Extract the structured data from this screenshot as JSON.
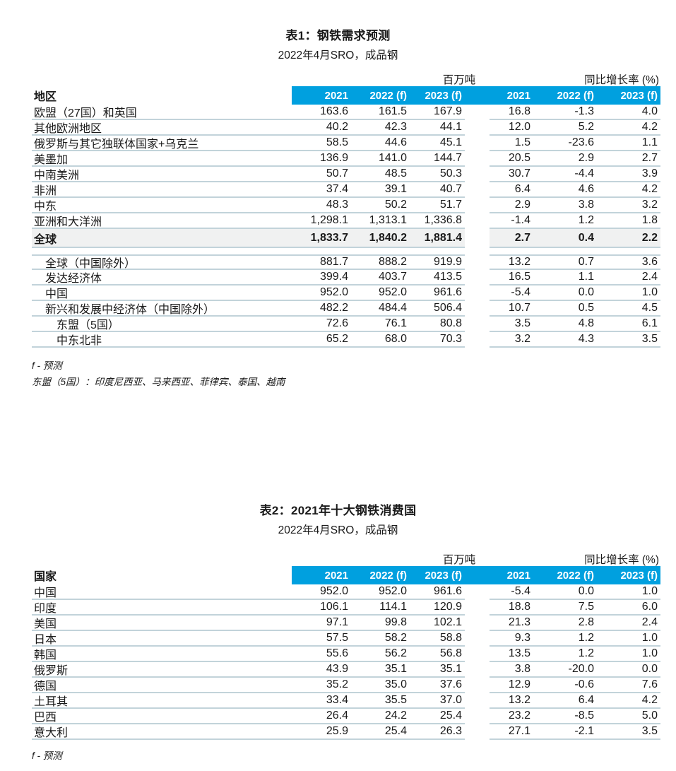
{
  "colors": {
    "accent": "#00A0DF",
    "line": "#C2D3DA",
    "row_shade": "#F0F1F1",
    "header_text": "#FFFFFF"
  },
  "tables": [
    {
      "title": "表1：钢铁需求预测",
      "subtitle": "2022年4月SRO，成品钢",
      "unit_header": "百万吨",
      "growth_header": "同比增长率 (%)",
      "row_header": "地区",
      "col_headers": [
        "2021",
        "2022 (f)",
        "2023 (f)",
        "2021",
        "2022 (f)",
        "2023 (f)"
      ],
      "rows": [
        {
          "label": "欧盟（27国）和英国",
          "indent": 0,
          "values": [
            "163.6",
            "161.5",
            "167.9",
            "16.8",
            "-1.3",
            "4.0"
          ]
        },
        {
          "label": "其他欧洲地区",
          "indent": 0,
          "values": [
            "40.2",
            "42.3",
            "44.1",
            "12.0",
            "5.2",
            "4.2"
          ]
        },
        {
          "label": "俄罗斯与其它独联体国家+乌克兰",
          "indent": 0,
          "values": [
            "58.5",
            "44.6",
            "45.1",
            "1.5",
            "-23.6",
            "1.1"
          ]
        },
        {
          "label": "美墨加",
          "indent": 0,
          "values": [
            "136.9",
            "141.0",
            "144.7",
            "20.5",
            "2.9",
            "2.7"
          ]
        },
        {
          "label": "中南美洲",
          "indent": 0,
          "values": [
            "50.7",
            "48.5",
            "50.3",
            "30.7",
            "-4.4",
            "3.9"
          ]
        },
        {
          "label": "非洲",
          "indent": 0,
          "values": [
            "37.4",
            "39.1",
            "40.7",
            "6.4",
            "4.6",
            "4.2"
          ]
        },
        {
          "label": "中东",
          "indent": 0,
          "values": [
            "48.3",
            "50.2",
            "51.7",
            "2.9",
            "3.8",
            "3.2"
          ]
        },
        {
          "label": "亚洲和大洋洲",
          "indent": 0,
          "values": [
            "1,298.1",
            "1,313.1",
            "1,336.8",
            "-1.4",
            "1.2",
            "1.8"
          ]
        },
        {
          "label": "全球",
          "indent": 0,
          "bold": true,
          "shaded": true,
          "values": [
            "1,833.7",
            "1,840.2",
            "1,881.4",
            "2.7",
            "0.4",
            "2.2"
          ]
        },
        {
          "label": "全球（中国除外）",
          "indent": 1,
          "gap_before": true,
          "values": [
            "881.7",
            "888.2",
            "919.9",
            "13.2",
            "0.7",
            "3.6"
          ]
        },
        {
          "label": "发达经济体",
          "indent": 1,
          "values": [
            "399.4",
            "403.7",
            "413.5",
            "16.5",
            "1.1",
            "2.4"
          ]
        },
        {
          "label": "中国",
          "indent": 1,
          "values": [
            "952.0",
            "952.0",
            "961.6",
            "-5.4",
            "0.0",
            "1.0"
          ]
        },
        {
          "label": "新兴和发展中经济体（中国除外）",
          "indent": 1,
          "values": [
            "482.2",
            "484.4",
            "506.4",
            "10.7",
            "0.5",
            "4.5"
          ]
        },
        {
          "label": "东盟（5国）",
          "indent": 2,
          "values": [
            "72.6",
            "76.1",
            "80.8",
            "3.5",
            "4.8",
            "6.1"
          ]
        },
        {
          "label": "中东北非",
          "indent": 2,
          "values": [
            "65.2",
            "68.0",
            "70.3",
            "3.2",
            "4.3",
            "3.5"
          ]
        }
      ],
      "footnotes": [
        "f - 预测",
        "东盟（5国）：印度尼西亚、马来西亚、菲律宾、泰国、越南"
      ]
    },
    {
      "title": "表2：2021年十大钢铁消费国",
      "subtitle": "2022年4月SRO，成品钢",
      "unit_header": "百万吨",
      "growth_header": "同比增长率 (%)",
      "row_header": "国家",
      "col_headers": [
        "2021",
        "2022 (f)",
        "2023 (f)",
        "2021",
        "2022 (f)",
        "2023 (f)"
      ],
      "rows": [
        {
          "label": "中国",
          "indent": 0,
          "values": [
            "952.0",
            "952.0",
            "961.6",
            "-5.4",
            "0.0",
            "1.0"
          ]
        },
        {
          "label": "印度",
          "indent": 0,
          "values": [
            "106.1",
            "114.1",
            "120.9",
            "18.8",
            "7.5",
            "6.0"
          ]
        },
        {
          "label": "美国",
          "indent": 0,
          "values": [
            "97.1",
            "99.8",
            "102.1",
            "21.3",
            "2.8",
            "2.4"
          ]
        },
        {
          "label": "日本",
          "indent": 0,
          "values": [
            "57.5",
            "58.2",
            "58.8",
            "9.3",
            "1.2",
            "1.0"
          ]
        },
        {
          "label": "韩国",
          "indent": 0,
          "values": [
            "55.6",
            "56.2",
            "56.8",
            "13.5",
            "1.2",
            "1.0"
          ]
        },
        {
          "label": "俄罗斯",
          "indent": 0,
          "values": [
            "43.9",
            "35.1",
            "35.1",
            "3.8",
            "-20.0",
            "0.0"
          ]
        },
        {
          "label": "德国",
          "indent": 0,
          "values": [
            "35.2",
            "35.0",
            "37.6",
            "12.9",
            "-0.6",
            "7.6"
          ]
        },
        {
          "label": "土耳其",
          "indent": 0,
          "values": [
            "33.4",
            "35.5",
            "37.0",
            "13.2",
            "6.4",
            "4.2"
          ]
        },
        {
          "label": "巴西",
          "indent": 0,
          "values": [
            "26.4",
            "24.2",
            "25.4",
            "23.2",
            "-8.5",
            "5.0"
          ]
        },
        {
          "label": "意大利",
          "indent": 0,
          "values": [
            "25.9",
            "25.4",
            "26.3",
            "27.1",
            "-2.1",
            "3.5"
          ]
        }
      ],
      "footnotes": [
        "f - 预测"
      ]
    }
  ]
}
